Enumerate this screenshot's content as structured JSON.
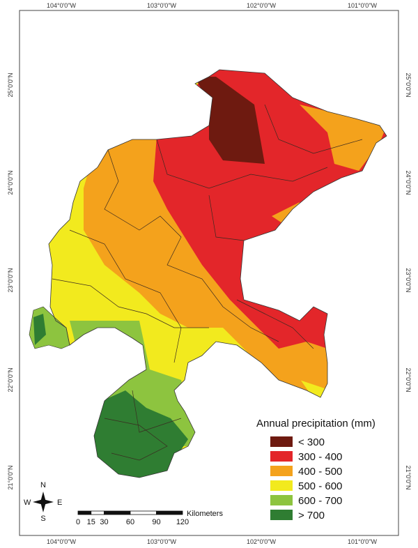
{
  "map": {
    "longitude_labels": [
      "104°0'0\"W",
      "103°0'0\"W",
      "102°0'0\"W",
      "101°0'0\"W"
    ],
    "latitude_labels": [
      "25°0'0\"N",
      "24°0'0\"N",
      "23°0'0\"N",
      "22°0'0\"N",
      "21°0'0\"N"
    ]
  },
  "legend": {
    "title": "Annual precipitation (mm)",
    "items": [
      {
        "label": "< 300",
        "color": "#6e1a10"
      },
      {
        "label": "300 - 400",
        "color": "#e3262a"
      },
      {
        "label": "400 - 500",
        "color": "#f4a21c"
      },
      {
        "label": "500 - 600",
        "color": "#f2ea1e"
      },
      {
        "label": "600 - 700",
        "color": "#8dc43f"
      },
      {
        "label": "> 700",
        "color": "#2f7d32"
      }
    ]
  },
  "compass": {
    "north": "N",
    "south": "S",
    "east": "E",
    "west": "W"
  },
  "scale_bar": {
    "unit": "Kilometers",
    "labels": [
      0,
      15,
      30,
      60,
      90,
      120
    ]
  }
}
